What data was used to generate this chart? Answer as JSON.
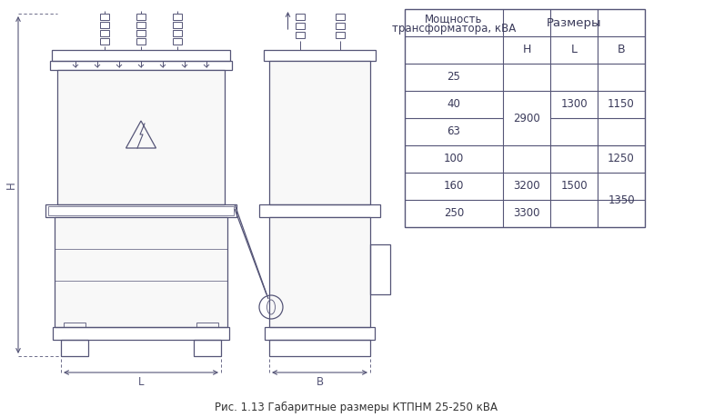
{
  "fig_width": 7.85,
  "fig_height": 4.59,
  "dpi": 100,
  "bg_color": "#ffffff",
  "line_color": "#555577",
  "caption": "Рис. 1.13 Габаритные размеры КТПНМ 25-250 кВА",
  "table_title1": "Мощность",
  "table_title2": "трансформатора, кВА",
  "table_sizes": "Размеры",
  "col_H": "H",
  "col_L": "L",
  "col_B": "B",
  "powers": [
    "25",
    "40",
    "63",
    "100",
    "160",
    "250"
  ],
  "dim_H": "H",
  "dim_L": "L",
  "dim_B": "B"
}
